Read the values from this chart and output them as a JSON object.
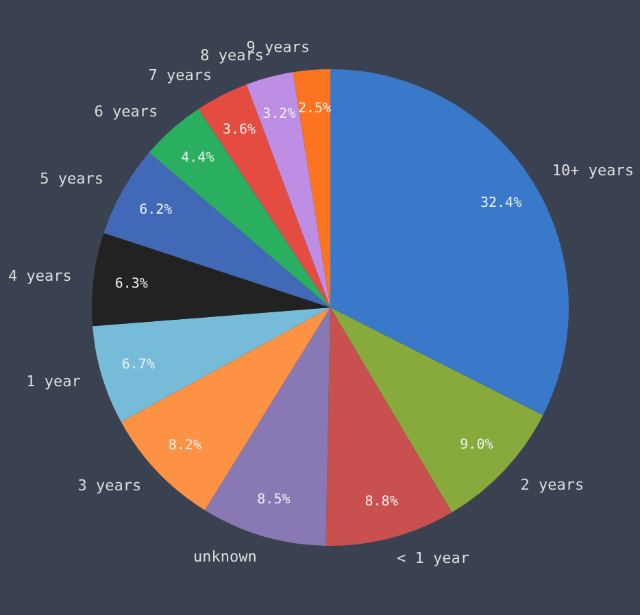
{
  "chart_data": {
    "type": "pie",
    "value_labels": [
      "32.4%",
      "9.0%",
      "8.8%",
      "8.5%",
      "8.2%",
      "6.7%",
      "6.3%",
      "6.2%",
      "4.4%",
      "3.6%",
      "3.2%",
      "2.5%"
    ],
    "categories": [
      "10+ years",
      "2 years",
      "< 1 year",
      "unknown",
      "3 years",
      "1 year",
      "4 years",
      "5 years",
      "6 years",
      "7 years",
      "8 years",
      "9 years"
    ],
    "values": [
      32.4,
      9.0,
      8.8,
      8.5,
      8.2,
      6.7,
      6.3,
      6.2,
      4.4,
      3.6,
      3.2,
      2.5
    ],
    "colors": [
      "#3a78c9",
      "#88aa3c",
      "#c8504f",
      "#8878b4",
      "#fd9245",
      "#76bcd9",
      "#222222",
      "#4169b8",
      "#2aaf60",
      "#e44c42",
      "#bd8ee4",
      "#fd7420"
    ]
  }
}
